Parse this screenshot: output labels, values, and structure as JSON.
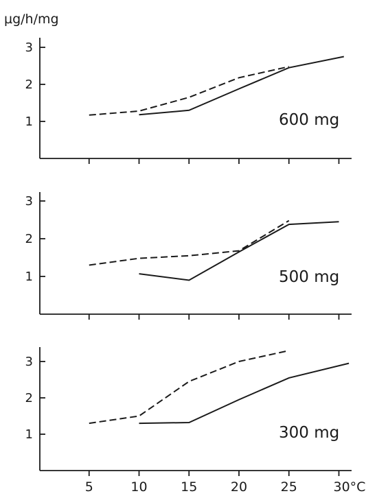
{
  "chart_data": {
    "type": "line",
    "ylabel": "µg/h/mg",
    "x_tick_labels": [
      "5",
      "10",
      "15",
      "20",
      "25",
      "30°C"
    ],
    "x_ticks": [
      5,
      10,
      15,
      20,
      25,
      30
    ],
    "xlim": [
      0,
      31
    ],
    "panels": [
      {
        "label": "600 mg",
        "ylim": [
          0,
          3.3
        ],
        "y_ticks": [
          1,
          2,
          3
        ],
        "y_tick_labels": [
          "1",
          "2",
          "3"
        ],
        "series": [
          {
            "style": "solid",
            "x": [
              10,
              15,
              20,
              25,
              30.5
            ],
            "y": [
              1.18,
              1.3,
              1.88,
              2.45,
              2.75
            ]
          },
          {
            "style": "dashed",
            "x": [
              5,
              10,
              15,
              20,
              25
            ],
            "y": [
              1.17,
              1.28,
              1.65,
              2.18,
              2.48
            ]
          }
        ]
      },
      {
        "label": "500 mg",
        "ylim": [
          0,
          3.3
        ],
        "y_ticks": [
          1,
          2,
          3
        ],
        "y_tick_labels": [
          "1",
          "2",
          "3"
        ],
        "series": [
          {
            "style": "solid",
            "x": [
              10,
              15,
              20,
              25,
              30
            ],
            "y": [
              1.07,
              0.9,
              1.65,
              2.38,
              2.45
            ]
          },
          {
            "style": "dashed",
            "x": [
              5,
              10,
              15,
              20,
              25
            ],
            "y": [
              1.3,
              1.48,
              1.55,
              1.68,
              2.48
            ]
          }
        ]
      },
      {
        "label": "300 mg",
        "ylim": [
          0,
          3.3
        ],
        "y_ticks": [
          1,
          2,
          3
        ],
        "y_tick_labels": [
          "1",
          "2",
          "3"
        ],
        "series": [
          {
            "style": "solid",
            "x": [
              10,
              15,
              20,
              25,
              31
            ],
            "y": [
              1.3,
              1.32,
              1.95,
              2.55,
              2.95
            ]
          },
          {
            "style": "dashed",
            "x": [
              5,
              10,
              15,
              20,
              25
            ],
            "y": [
              1.3,
              1.5,
              2.45,
              3.0,
              3.3
            ]
          }
        ]
      }
    ]
  }
}
